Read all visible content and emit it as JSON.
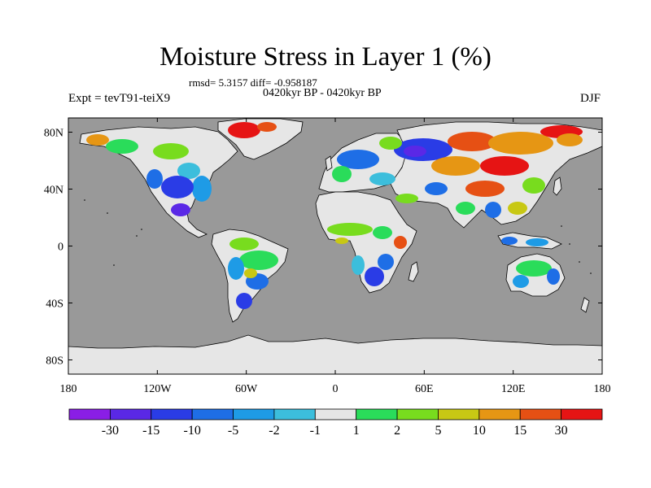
{
  "title": "Moisture Stress in Layer 1 (%)",
  "stats_line": "rmsd= 5.3157 diff= -0.958187",
  "period_line": "0420kyr BP - 0420kyr BP",
  "experiment_label": "Expt = tevT91-teiX9",
  "season_label": "DJF",
  "map": {
    "projection": "cylindrical equidistant",
    "lon_range": [
      -180,
      180
    ],
    "lat_range": [
      -90,
      90
    ],
    "lon_ticks": [
      {
        "value": -180,
        "label": "180"
      },
      {
        "value": -120,
        "label": "120W"
      },
      {
        "value": -60,
        "label": "60W"
      },
      {
        "value": 0,
        "label": "0"
      },
      {
        "value": 60,
        "label": "60E"
      },
      {
        "value": 120,
        "label": "120E"
      },
      {
        "value": 180,
        "label": "180"
      }
    ],
    "lat_ticks": [
      {
        "value": 80,
        "label": "80N"
      },
      {
        "value": 40,
        "label": "40N"
      },
      {
        "value": 0,
        "label": "0"
      },
      {
        "value": -40,
        "label": "40S"
      },
      {
        "value": -80,
        "label": "80S"
      }
    ],
    "ocean_color": "#999999",
    "coastline_color": "#000000"
  },
  "colorbar": {
    "labels": [
      "-30",
      "-15",
      "-10",
      "-5",
      "-2",
      "-1",
      "1",
      "2",
      "5",
      "10",
      "15",
      "30"
    ],
    "colors": [
      "#8a1ee6",
      "#5a28e6",
      "#2a3ce6",
      "#1e6ee6",
      "#1e9be6",
      "#3cbedc",
      "#e6e6e6",
      "#2adc5a",
      "#78dc1e",
      "#c8c814",
      "#e69614",
      "#e65014",
      "#e61414"
    ]
  }
}
